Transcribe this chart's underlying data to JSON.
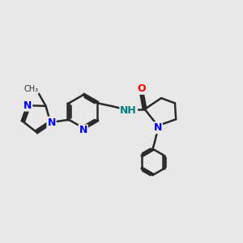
{
  "background_color": "#e8e8e8",
  "bond_color": "#2a2a2a",
  "bond_width": 1.8,
  "N_color": "#0000ee",
  "NH_color": "#008080",
  "O_color": "#ff0000",
  "font_size": 9,
  "figsize": [
    3.0,
    3.0
  ],
  "dpi": 100,
  "xlim": [
    0,
    12
  ],
  "ylim": [
    0,
    12
  ]
}
